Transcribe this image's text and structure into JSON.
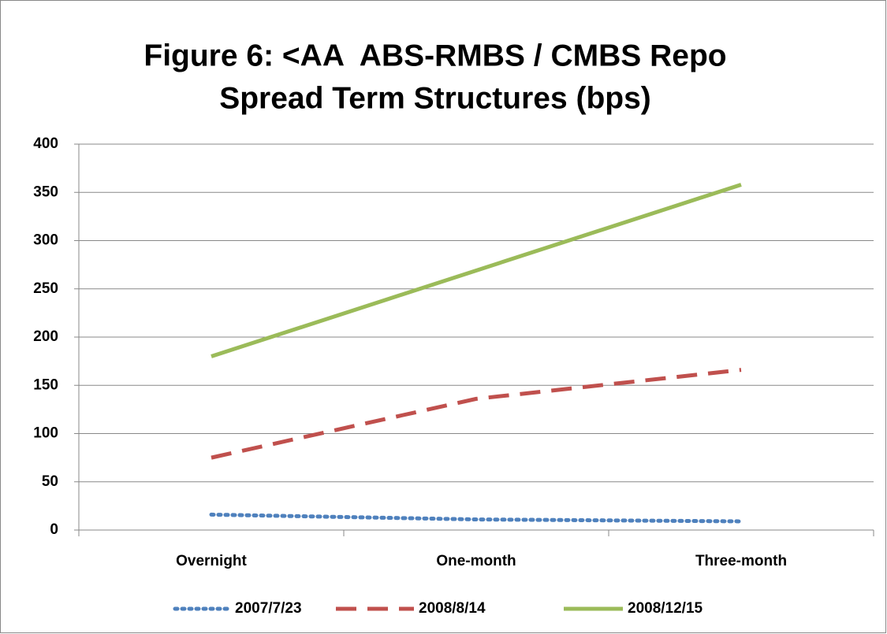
{
  "chart_data": {
    "type": "line",
    "title": [
      "Figure 6: <AA  ABS-RMBS / CMBS Repo",
      "Spread Term Structures (bps)"
    ],
    "categories": [
      "Overnight",
      "One-month",
      "Three-month"
    ],
    "series": [
      {
        "name": "2007/7/23",
        "color": "#4f81bd",
        "style": "dotted",
        "values": [
          16,
          11,
          9
        ]
      },
      {
        "name": "2008/8/14",
        "color": "#c0504d",
        "style": "dashed",
        "values": [
          75,
          136,
          166
        ]
      },
      {
        "name": "2008/12/15",
        "color": "#9bbb59",
        "style": "solid",
        "values": [
          180,
          269,
          358
        ]
      }
    ],
    "ylim": [
      0,
      400
    ],
    "yticks": [
      0,
      50,
      100,
      150,
      200,
      250,
      300,
      350,
      400
    ],
    "grid": true,
    "legend": "bottom"
  }
}
